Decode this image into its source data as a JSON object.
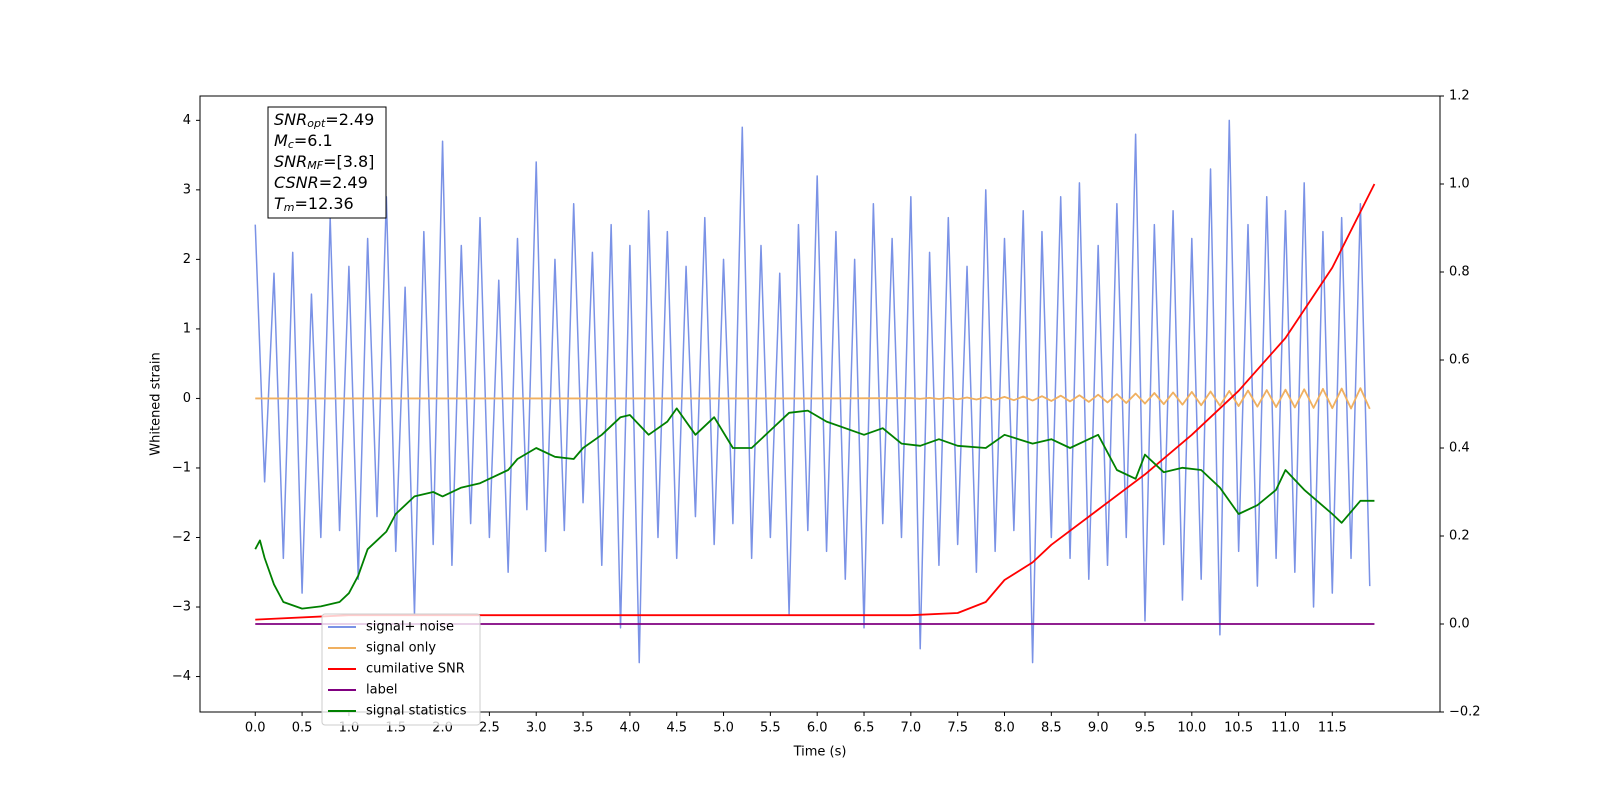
{
  "chart_data": {
    "type": "line",
    "xlabel": "Time (s)",
    "ylabel": "Whitened strain",
    "xlim": [
      -0.59,
      12.65
    ],
    "ylim": [
      -4.51,
      4.35
    ],
    "y2lim": [
      -0.2,
      1.2
    ],
    "xticks": [
      {
        "value": 0,
        "label": "0.0"
      },
      0.5,
      {
        "value": 1,
        "label": "1.0"
      },
      1.5,
      {
        "value": 2,
        "label": "2.0"
      },
      2.5,
      {
        "value": 3,
        "label": "3.0"
      },
      3.5,
      {
        "value": 4,
        "label": "4.0"
      },
      4.5,
      {
        "value": 5,
        "label": "5.0"
      },
      5.5,
      {
        "value": 6,
        "label": "6.0"
      },
      6.5,
      {
        "value": 7,
        "label": "7.0"
      },
      7.5,
      {
        "value": 8,
        "label": "8.0"
      },
      8.5,
      {
        "value": 9,
        "label": "9.0"
      },
      9.5,
      {
        "value": 10,
        "label": "10.0"
      },
      10.5,
      {
        "value": 11,
        "label": "11.0"
      },
      11.5
    ],
    "yticks": [
      {
        "value": -4,
        "label": "−4"
      },
      {
        "value": -3,
        "label": "−3"
      },
      {
        "value": -2,
        "label": "−2"
      },
      {
        "value": -1,
        "label": "−1"
      },
      0,
      1,
      2,
      3,
      4
    ],
    "y2ticks": [
      {
        "value": -0.2,
        "label": "−0.2"
      },
      {
        "value": 0,
        "label": "0.0"
      },
      0.2,
      0.4,
      0.6,
      0.8,
      {
        "value": 1,
        "label": "1.0"
      },
      1.2
    ],
    "legend": "lower left",
    "annotation": [
      {
        "main": "SNR",
        "sub": "opt",
        "rest": "=2.49"
      },
      {
        "main": "M",
        "sub": "c",
        "rest": "=6.1"
      },
      {
        "main": "SNR",
        "sub": "MF",
        "rest": "=[3.8]"
      },
      {
        "main": "CSNR",
        "rest": "=2.49"
      },
      {
        "main": "T",
        "sub": "m",
        "rest": "=12.36"
      }
    ],
    "series": [
      {
        "name": "signal+ noise",
        "color": "#7a92e6",
        "axis": "y",
        "x": [
          0,
          0.1,
          0.2,
          0.3,
          0.4,
          0.5,
          0.6,
          0.7,
          0.8,
          0.9,
          1,
          1.1,
          1.2,
          1.3,
          1.4,
          1.5,
          1.6,
          1.7,
          1.8,
          1.9,
          2,
          2.1,
          2.2,
          2.3,
          2.4,
          2.5,
          2.6,
          2.7,
          2.8,
          2.9,
          3,
          3.1,
          3.2,
          3.3,
          3.4,
          3.5,
          3.6,
          3.7,
          3.8,
          3.9,
          4,
          4.1,
          4.2,
          4.3,
          4.4,
          4.5,
          4.6,
          4.7,
          4.8,
          4.9,
          5,
          5.1,
          5.2,
          5.3,
          5.4,
          5.5,
          5.6,
          5.7,
          5.8,
          5.9,
          6,
          6.1,
          6.2,
          6.3,
          6.4,
          6.5,
          6.6,
          6.7,
          6.8,
          6.9,
          7,
          7.1,
          7.2,
          7.3,
          7.4,
          7.5,
          7.6,
          7.7,
          7.8,
          7.9,
          8,
          8.1,
          8.2,
          8.3,
          8.4,
          8.5,
          8.6,
          8.7,
          8.8,
          8.9,
          9,
          9.1,
          9.2,
          9.3,
          9.4,
          9.5,
          9.6,
          9.7,
          9.8,
          9.9,
          10,
          10.1,
          10.2,
          10.3,
          10.4,
          10.5,
          10.6,
          10.7,
          10.8,
          10.9,
          11,
          11.1,
          11.2,
          11.3,
          11.4,
          11.5,
          11.6,
          11.7,
          11.8,
          11.9
        ],
        "values": [
          2.5,
          -1.2,
          1.8,
          -2.3,
          2.1,
          -2.8,
          1.5,
          -2.0,
          2.6,
          -1.9,
          1.9,
          -2.6,
          2.3,
          -1.7,
          2.9,
          -2.2,
          1.6,
          -3.1,
          2.4,
          -2.1,
          3.7,
          -2.4,
          2.2,
          -1.8,
          2.6,
          -2.0,
          1.7,
          -2.5,
          2.3,
          -1.6,
          3.4,
          -2.2,
          2.0,
          -1.9,
          2.8,
          -1.5,
          2.1,
          -2.4,
          2.5,
          -3.3,
          2.2,
          -3.8,
          2.7,
          -2.0,
          2.4,
          -2.3,
          1.9,
          -1.7,
          2.6,
          -2.1,
          2.0,
          -1.8,
          3.9,
          -2.3,
          2.2,
          -2.0,
          1.8,
          -3.1,
          2.5,
          -1.9,
          3.2,
          -2.2,
          2.4,
          -2.6,
          2.0,
          -3.3,
          2.8,
          -1.8,
          2.3,
          -2.0,
          2.9,
          -3.6,
          2.1,
          -2.4,
          2.6,
          -2.1,
          1.9,
          -2.5,
          3.0,
          -2.2,
          2.3,
          -1.9,
          2.7,
          -3.8,
          2.4,
          -2.0,
          2.9,
          -2.3,
          3.1,
          -2.6,
          2.2,
          -2.4,
          2.8,
          -2.0,
          3.8,
          -3.2,
          2.5,
          -2.1,
          2.7,
          -2.9,
          2.3,
          -2.6,
          3.3,
          -3.4,
          4.0,
          -2.2,
          2.5,
          -2.7,
          2.9,
          -2.3,
          2.7,
          -2.5,
          3.1,
          -3.0,
          2.4,
          -2.8,
          2.6,
          -2.3,
          2.8,
          -2.7
        ]
      },
      {
        "name": "signal only",
        "color": "#f0b060",
        "axis": "y",
        "x": [
          0,
          1,
          2,
          3,
          4,
          5,
          6,
          7,
          7.1,
          7.2,
          7.3,
          7.4,
          7.5,
          7.6,
          7.7,
          7.8,
          7.9,
          8,
          8.1,
          8.2,
          8.3,
          8.4,
          8.5,
          8.6,
          8.7,
          8.8,
          8.9,
          9,
          9.1,
          9.2,
          9.3,
          9.4,
          9.5,
          9.6,
          9.7,
          9.8,
          9.9,
          10,
          10.1,
          10.2,
          10.3,
          10.4,
          10.5,
          10.6,
          10.7,
          10.8,
          10.9,
          11,
          11.1,
          11.2,
          11.3,
          11.4,
          11.5,
          11.6,
          11.7,
          11.8,
          11.9
        ],
        "values": [
          0,
          0,
          0,
          0,
          0,
          0,
          0,
          0.005,
          -0.005,
          0.008,
          -0.008,
          0.01,
          -0.012,
          0.014,
          -0.016,
          0.018,
          -0.02,
          0.022,
          -0.025,
          0.028,
          -0.03,
          0.033,
          -0.036,
          0.04,
          -0.043,
          0.046,
          -0.05,
          0.054,
          -0.058,
          0.062,
          -0.066,
          0.07,
          -0.074,
          0.078,
          -0.082,
          0.086,
          -0.09,
          0.094,
          -0.098,
          0.1,
          -0.104,
          0.108,
          -0.11,
          0.114,
          -0.118,
          0.12,
          -0.124,
          0.126,
          -0.13,
          0.132,
          -0.136,
          0.138,
          -0.14,
          0.142,
          -0.145,
          0.148,
          -0.15
        ]
      },
      {
        "name": "cumilative SNR",
        "color": "#ff0000",
        "axis": "y2",
        "x": [
          0,
          1,
          2,
          3,
          4,
          5,
          6,
          7,
          7.5,
          7.8,
          8,
          8.3,
          8.5,
          9,
          9.5,
          10,
          10.5,
          11,
          11.5,
          11.95
        ],
        "values": [
          0.01,
          0.02,
          0.02,
          0.02,
          0.02,
          0.02,
          0.02,
          0.02,
          0.025,
          0.05,
          0.1,
          0.14,
          0.18,
          0.26,
          0.34,
          0.43,
          0.53,
          0.65,
          0.81,
          1.0
        ]
      },
      {
        "name": "label",
        "color": "#800080",
        "axis": "y2",
        "x": [
          0,
          11.95
        ],
        "values": [
          0,
          0
        ]
      },
      {
        "name": "signal statistics",
        "color": "#008000",
        "axis": "y2",
        "x": [
          0,
          0.05,
          0.1,
          0.2,
          0.3,
          0.5,
          0.7,
          0.9,
          1.0,
          1.1,
          1.2,
          1.4,
          1.5,
          1.7,
          1.9,
          2.0,
          2.2,
          2.4,
          2.5,
          2.7,
          2.8,
          3.0,
          3.2,
          3.4,
          3.5,
          3.7,
          3.9,
          4.0,
          4.2,
          4.4,
          4.5,
          4.7,
          4.9,
          5.1,
          5.3,
          5.5,
          5.7,
          5.9,
          6.1,
          6.3,
          6.5,
          6.7,
          6.9,
          7.1,
          7.3,
          7.5,
          7.8,
          8.0,
          8.3,
          8.5,
          8.7,
          8.9,
          9.0,
          9.2,
          9.4,
          9.5,
          9.7,
          9.9,
          10.1,
          10.3,
          10.5,
          10.7,
          10.9,
          11.0,
          11.2,
          11.5,
          11.6,
          11.8,
          11.95
        ],
        "values": [
          0.17,
          0.19,
          0.15,
          0.09,
          0.05,
          0.035,
          0.04,
          0.05,
          0.07,
          0.11,
          0.17,
          0.21,
          0.25,
          0.29,
          0.3,
          0.29,
          0.31,
          0.32,
          0.33,
          0.35,
          0.375,
          0.4,
          0.38,
          0.375,
          0.4,
          0.43,
          0.47,
          0.475,
          0.43,
          0.46,
          0.49,
          0.43,
          0.47,
          0.4,
          0.4,
          0.44,
          0.48,
          0.485,
          0.46,
          0.445,
          0.43,
          0.445,
          0.41,
          0.405,
          0.42,
          0.405,
          0.4,
          0.43,
          0.41,
          0.42,
          0.4,
          0.42,
          0.43,
          0.35,
          0.33,
          0.385,
          0.345,
          0.355,
          0.35,
          0.31,
          0.25,
          0.27,
          0.305,
          0.35,
          0.305,
          0.25,
          0.23,
          0.28,
          0.28
        ]
      }
    ]
  }
}
